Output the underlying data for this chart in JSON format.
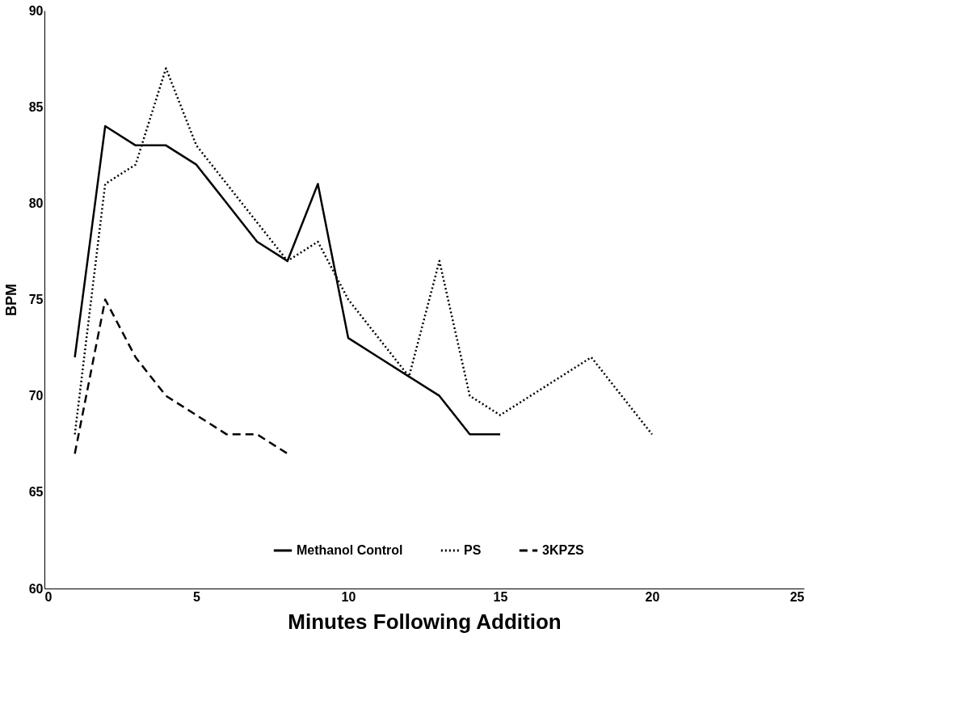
{
  "chart_data": {
    "type": "line",
    "xlabel": "Minutes Following Addition",
    "ylabel": "BPM",
    "x": [
      1,
      2,
      3,
      4,
      5,
      6,
      7,
      8,
      9,
      10,
      11,
      12,
      13,
      14,
      15,
      16,
      17,
      18,
      19,
      20
    ],
    "series": [
      {
        "name": "Methanol Control",
        "color": "#000000",
        "line_style": "solid",
        "values": [
          72,
          84,
          83,
          83,
          82,
          80,
          78,
          77,
          81,
          73,
          72,
          71,
          70,
          68,
          68,
          null,
          null,
          null,
          null,
          null
        ]
      },
      {
        "name": "PS",
        "color": "#000000",
        "line_style": "dotted",
        "values": [
          68,
          81,
          82,
          87,
          83,
          81,
          79,
          77,
          78,
          75,
          73,
          71,
          77,
          70,
          69,
          70,
          71,
          72,
          70,
          68
        ]
      },
      {
        "name": "3KPZS",
        "color": "#000000",
        "line_style": "dashed",
        "values": [
          67,
          75,
          72,
          70,
          69,
          68,
          68,
          67,
          null,
          null,
          null,
          null,
          null,
          null,
          null,
          null,
          null,
          null,
          null,
          null
        ]
      }
    ],
    "xlim": [
      0,
      25
    ],
    "xticks": [
      0,
      5,
      10,
      15,
      20,
      25
    ],
    "ylim": [
      60,
      90
    ],
    "yticks": [
      60,
      65,
      70,
      75,
      80,
      85,
      90
    ],
    "grid": false,
    "legend": "bottom",
    "marker": "none"
  }
}
